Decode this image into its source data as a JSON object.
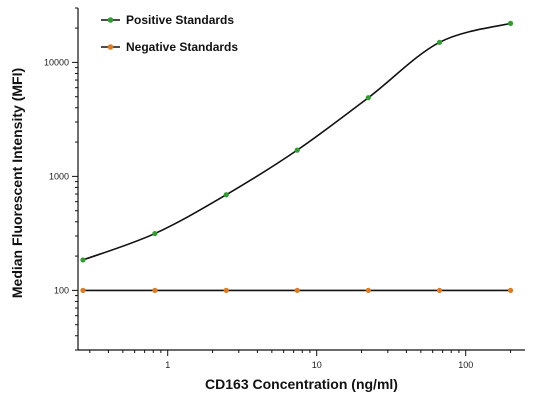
{
  "chart_data": {
    "type": "scatter",
    "xlabel": "CD163 Concentration (ng/ml)",
    "ylabel": "Median Fluorescent Intensity (MFI)",
    "xscale": "log",
    "yscale": "log",
    "xlim": [
      0.25,
      250
    ],
    "ylim": [
      30,
      30000
    ],
    "x_ticks": [
      1,
      10,
      100
    ],
    "x_tick_labels": [
      "1",
      "10",
      "100"
    ],
    "y_ticks": [
      100,
      1000,
      10000
    ],
    "y_tick_labels": [
      "100",
      "1000",
      "10000"
    ],
    "legend_position": "top-left",
    "series": [
      {
        "name": "Positive Standards",
        "color": "#2e9e2e",
        "line_color": "#111111",
        "x": [
          0.27,
          0.82,
          2.47,
          7.4,
          22.2,
          66.7,
          200
        ],
        "y": [
          185,
          315,
          690,
          1700,
          4900,
          15000,
          22000
        ]
      },
      {
        "name": "Negative Standards",
        "color": "#e07a1f",
        "line_color": "#111111",
        "x": [
          0.27,
          0.82,
          2.47,
          7.4,
          22.2,
          66.7,
          200
        ],
        "y": [
          100,
          100,
          100,
          100,
          100,
          100,
          100
        ]
      }
    ]
  }
}
